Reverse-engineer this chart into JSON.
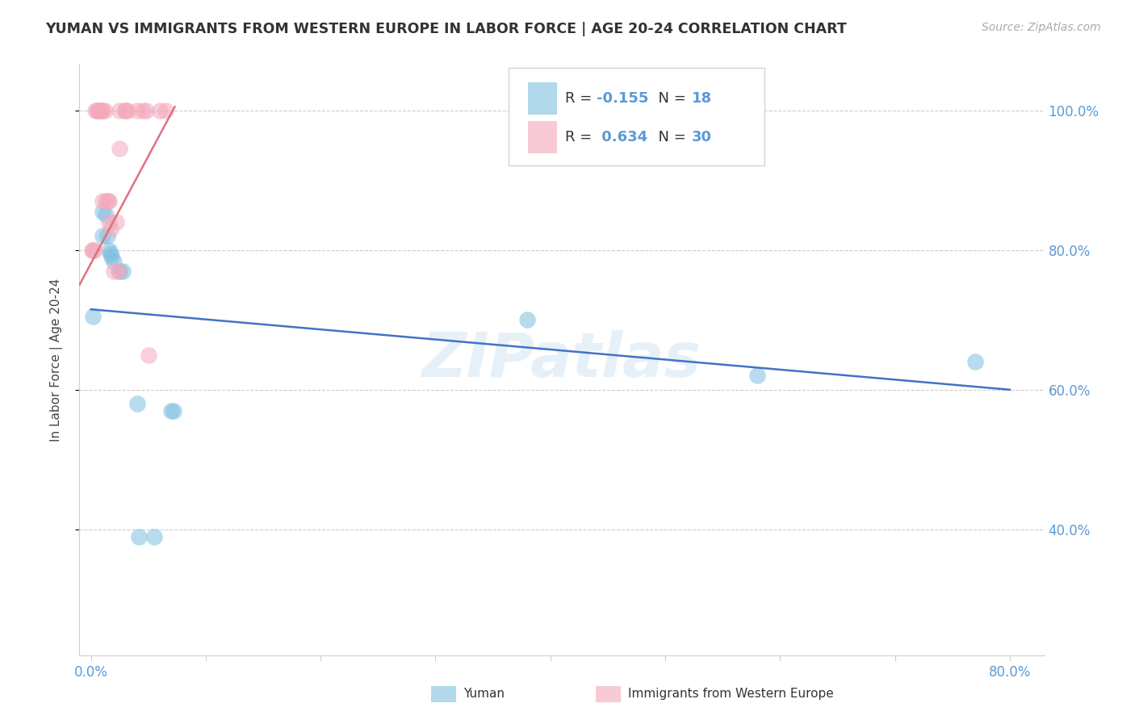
{
  "title": "YUMAN VS IMMIGRANTS FROM WESTERN EUROPE IN LABOR FORCE | AGE 20-24 CORRELATION CHART",
  "source": "Source: ZipAtlas.com",
  "ylabel": "In Labor Force | Age 20-24",
  "watermark": "ZIPatlas",
  "blue_color": "#7fbee0",
  "pink_color": "#f4a8bc",
  "blue_line_color": "#4472c4",
  "pink_line_color": "#e07080",
  "yuman_points": [
    [
      0.002,
      0.705
    ],
    [
      0.01,
      0.855
    ],
    [
      0.01,
      0.82
    ],
    [
      0.013,
      0.85
    ],
    [
      0.014,
      0.82
    ],
    [
      0.016,
      0.8
    ],
    [
      0.017,
      0.795
    ],
    [
      0.018,
      0.79
    ],
    [
      0.02,
      0.783
    ],
    [
      0.025,
      0.77
    ],
    [
      0.028,
      0.77
    ],
    [
      0.04,
      0.58
    ],
    [
      0.042,
      0.39
    ],
    [
      0.055,
      0.39
    ],
    [
      0.07,
      0.57
    ],
    [
      0.072,
      0.57
    ],
    [
      0.38,
      0.7
    ],
    [
      0.58,
      0.62
    ],
    [
      0.77,
      0.64
    ]
  ],
  "immigrant_points": [
    [
      0.001,
      0.8
    ],
    [
      0.002,
      0.8
    ],
    [
      0.003,
      0.8
    ],
    [
      0.004,
      1.0
    ],
    [
      0.005,
      1.0
    ],
    [
      0.006,
      1.0
    ],
    [
      0.007,
      1.0
    ],
    [
      0.008,
      1.0
    ],
    [
      0.009,
      1.0
    ],
    [
      0.01,
      1.0
    ],
    [
      0.01,
      0.87
    ],
    [
      0.012,
      1.0
    ],
    [
      0.013,
      0.87
    ],
    [
      0.015,
      0.87
    ],
    [
      0.016,
      0.87
    ],
    [
      0.016,
      0.84
    ],
    [
      0.017,
      0.83
    ],
    [
      0.02,
      0.77
    ],
    [
      0.022,
      0.84
    ],
    [
      0.024,
      0.77
    ],
    [
      0.025,
      1.0
    ],
    [
      0.025,
      0.945
    ],
    [
      0.03,
      1.0
    ],
    [
      0.03,
      1.0
    ],
    [
      0.032,
      1.0
    ],
    [
      0.04,
      1.0
    ],
    [
      0.045,
      1.0
    ],
    [
      0.048,
      1.0
    ],
    [
      0.05,
      0.65
    ],
    [
      0.06,
      1.0
    ],
    [
      0.065,
      1.0
    ]
  ],
  "xlim": [
    -0.01,
    0.83
  ],
  "ylim": [
    0.22,
    1.065
  ],
  "xtick_positions": [
    0.0,
    0.1,
    0.2,
    0.3,
    0.4,
    0.5,
    0.6,
    0.7,
    0.8
  ],
  "ytick_positions": [
    0.4,
    0.6,
    0.8,
    1.0
  ],
  "ytick_labels": [
    "40.0%",
    "60.0%",
    "80.0%",
    "100.0%"
  ],
  "blue_trendline": [
    [
      0.0,
      0.715
    ],
    [
      0.8,
      0.6
    ]
  ],
  "pink_trendline": [
    [
      -0.01,
      0.75
    ],
    [
      0.073,
      1.005
    ]
  ]
}
